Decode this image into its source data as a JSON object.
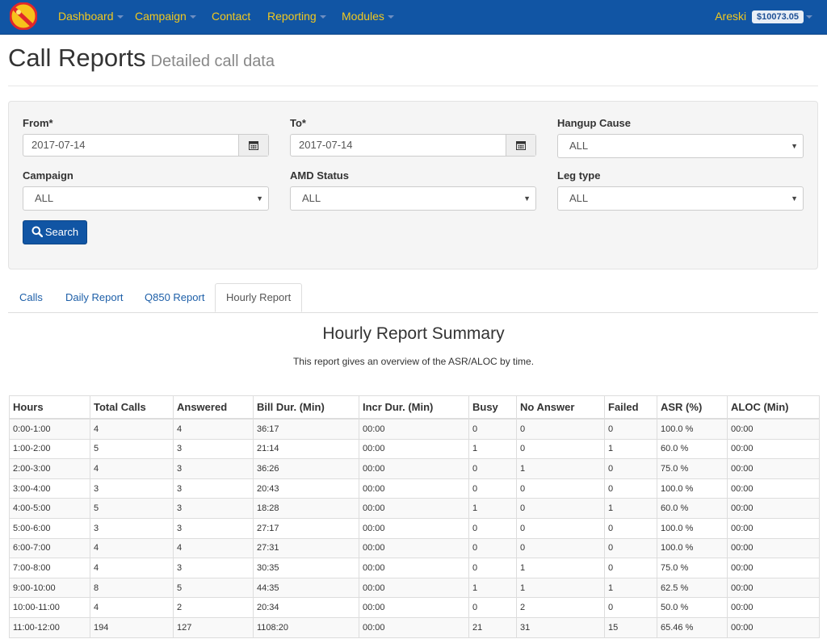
{
  "nav": {
    "items": [
      {
        "label": "Dashboard",
        "has_caret": true
      },
      {
        "label": "Campaign",
        "has_caret": true
      },
      {
        "label": "Contact",
        "has_caret": false
      },
      {
        "label": "Reporting",
        "has_caret": true
      },
      {
        "label": "Modules",
        "has_caret": true
      }
    ],
    "user_name": "Areski",
    "balance": "$10073.05",
    "logo_icon": "app-logo-icon"
  },
  "header": {
    "title": "Call Reports",
    "subtitle": "Detailed call data"
  },
  "filters": {
    "from": {
      "label": "From*",
      "value": "2017-07-14",
      "icon": "calendar-icon"
    },
    "to": {
      "label": "To*",
      "value": "2017-07-14",
      "icon": "calendar-icon"
    },
    "hangup_cause": {
      "label": "Hangup Cause",
      "value": "ALL"
    },
    "campaign": {
      "label": "Campaign",
      "value": "ALL"
    },
    "amd_status": {
      "label": "AMD Status",
      "value": "ALL"
    },
    "leg_type": {
      "label": "Leg type",
      "value": "ALL"
    },
    "search_label": "Search",
    "search_icon": "search-icon"
  },
  "tabs": [
    {
      "label": "Calls",
      "active": false
    },
    {
      "label": "Daily Report",
      "active": false
    },
    {
      "label": "Q850 Report",
      "active": false
    },
    {
      "label": "Hourly Report",
      "active": true
    }
  ],
  "summary": {
    "title": "Hourly Report Summary",
    "description": "This report gives an overview of the ASR/ALOC by time."
  },
  "table": {
    "columns": [
      "Hours",
      "Total Calls",
      "Answered",
      "Bill Dur. (Min)",
      "Incr Dur. (Min)",
      "Busy",
      "No Answer",
      "Failed",
      "ASR (%)",
      "ALOC (Min)"
    ],
    "rows": [
      [
        "0:00-1:00",
        "4",
        "4",
        "36:17",
        "00:00",
        "0",
        "0",
        "0",
        "100.0 %",
        "00:00"
      ],
      [
        "1:00-2:00",
        "5",
        "3",
        "21:14",
        "00:00",
        "1",
        "0",
        "1",
        "60.0 %",
        "00:00"
      ],
      [
        "2:00-3:00",
        "4",
        "3",
        "36:26",
        "00:00",
        "0",
        "1",
        "0",
        "75.0 %",
        "00:00"
      ],
      [
        "3:00-4:00",
        "3",
        "3",
        "20:43",
        "00:00",
        "0",
        "0",
        "0",
        "100.0 %",
        "00:00"
      ],
      [
        "4:00-5:00",
        "5",
        "3",
        "18:28",
        "00:00",
        "1",
        "0",
        "1",
        "60.0 %",
        "00:00"
      ],
      [
        "5:00-6:00",
        "3",
        "3",
        "27:17",
        "00:00",
        "0",
        "0",
        "0",
        "100.0 %",
        "00:00"
      ],
      [
        "6:00-7:00",
        "4",
        "4",
        "27:31",
        "00:00",
        "0",
        "0",
        "0",
        "100.0 %",
        "00:00"
      ],
      [
        "7:00-8:00",
        "4",
        "3",
        "30:35",
        "00:00",
        "0",
        "1",
        "0",
        "75.0 %",
        "00:00"
      ],
      [
        "9:00-10:00",
        "8",
        "5",
        "44:35",
        "00:00",
        "1",
        "1",
        "1",
        "62.5 %",
        "00:00"
      ],
      [
        "10:00-11:00",
        "4",
        "2",
        "20:34",
        "00:00",
        "0",
        "2",
        "0",
        "50.0 %",
        "00:00"
      ],
      [
        "11:00-12:00",
        "194",
        "127",
        "1108:20",
        "00:00",
        "21",
        "31",
        "15",
        "65.46 %",
        "00:00"
      ]
    ]
  }
}
